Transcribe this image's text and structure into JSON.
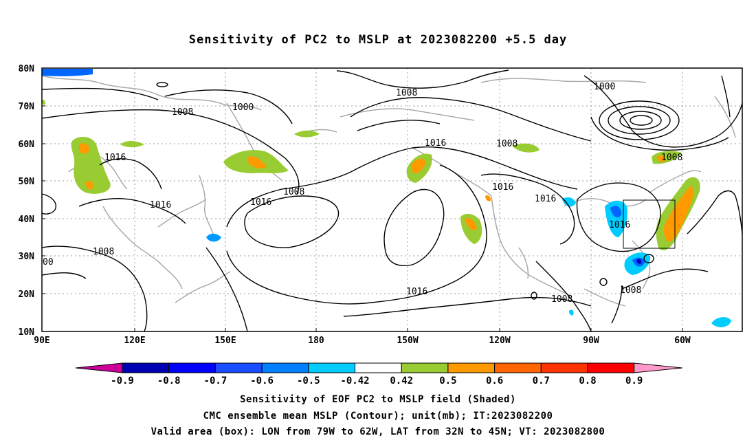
{
  "title": "Sensitivity of PC2 to MSLP at 2023082200 +5.5 day",
  "map": {
    "lat_labels": [
      "80N",
      "70N",
      "60N",
      "50N",
      "40N",
      "30N",
      "20N",
      "10N"
    ],
    "lon_labels": [
      "90E",
      "120E",
      "150E",
      "180",
      "150W",
      "120W",
      "90W",
      "60W"
    ],
    "contour_labels": [
      {
        "text": "1008",
        "name": "contour-label-1008-asia"
      },
      {
        "text": "1000",
        "name": "contour-label-1000-siberia"
      },
      {
        "text": "1008",
        "name": "contour-label-1008-arctic"
      },
      {
        "text": "1000",
        "name": "contour-label-1000-greenland"
      },
      {
        "text": "1016",
        "name": "contour-label-1016-mongolia"
      },
      {
        "text": "1016",
        "name": "contour-label-1016-china"
      },
      {
        "text": "1008",
        "name": "contour-label-1008-india"
      },
      {
        "text": "00",
        "name": "contour-label-00-edge"
      },
      {
        "text": "1008",
        "name": "contour-label-1008-kamchatka"
      },
      {
        "text": "1016",
        "name": "contour-label-1016-pacific-high"
      },
      {
        "text": "1016",
        "name": "contour-label-1016-gulf-alaska"
      },
      {
        "text": "1008",
        "name": "contour-label-1008-canada"
      },
      {
        "text": "1008",
        "name": "contour-label-1008-labrador"
      },
      {
        "text": "1016",
        "name": "contour-label-1016-rockies"
      },
      {
        "text": "1016",
        "name": "contour-label-1016-plains"
      },
      {
        "text": "1016",
        "name": "contour-label-1016-east-us"
      },
      {
        "text": "1016",
        "name": "contour-label-1016-tropical-pacific"
      },
      {
        "text": "1008",
        "name": "contour-label-1008-mexico"
      },
      {
        "text": "1008",
        "name": "contour-label-1008-caribbean"
      }
    ],
    "colors": {
      "green": "#99cc33",
      "orange": "#ff9900",
      "dark_orange": "#ff6600",
      "light_blue": "#00ccff",
      "blue": "#0099ff",
      "mid_blue": "#0066ff",
      "dark_blue": "#0000cc",
      "coast": "#aaaaaa"
    }
  },
  "colorbar": {
    "labels": [
      "-0.9",
      "-0.8",
      "-0.7",
      "-0.6",
      "-0.5",
      "-0.42",
      "0.42",
      "0.5",
      "0.6",
      "0.7",
      "0.8",
      "0.9"
    ],
    "colors": [
      "#cc0099",
      "#0000b3",
      "#0000ff",
      "#1a4dff",
      "#0080ff",
      "#00ccff",
      "#ffffff",
      "#99cc33",
      "#ff9900",
      "#ff6600",
      "#ff3300",
      "#ff0000",
      "#ff99cc"
    ]
  },
  "captions": {
    "line1": "Sensitivity of EOF PC2 to MSLP field (Shaded)",
    "line2": "CMC ensemble mean MSLP (Contour); unit(mb); IT:2023082200",
    "line3": "Valid area (box): LON from 79W to 62W, LAT from 32N to 45N; VT: 2023082800"
  }
}
